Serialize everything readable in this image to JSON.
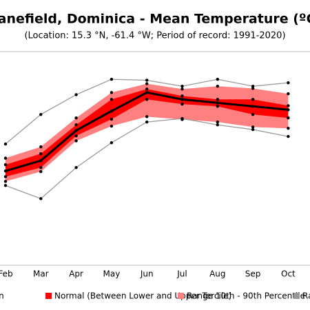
{
  "chart_data": {
    "type": "band-line",
    "title": "Canefield, Dominica - Mean Temperature (ºC)",
    "subtitle": "(Location: 15.3 °N, -61.4 °W; Period of record: 1991-2020)",
    "categories": [
      "Feb",
      "Mar",
      "Apr",
      "May",
      "Jun",
      "Jul",
      "Aug",
      "Sep",
      "Oct"
    ],
    "ylim": [
      21.5,
      28.3
    ],
    "series": [
      {
        "name": "Mean",
        "color": "#000000",
        "values": [
          24.5,
          24.83,
          25.79,
          26.41,
          27.0,
          26.78,
          26.67,
          26.56,
          26.45
        ]
      },
      {
        "name": "Normal (Between Lower and Upper Tercile)",
        "color": "#ff0000",
        "low": [
          24.32,
          24.61,
          25.62,
          26.15,
          26.78,
          26.63,
          26.56,
          26.3,
          26.19
        ],
        "high": [
          24.7,
          25.05,
          25.97,
          26.78,
          27.11,
          26.89,
          26.78,
          26.78,
          26.58
        ]
      },
      {
        "name": "Range 10th - 90th Percentile",
        "color": "#ff8080",
        "low": [
          24.17,
          24.48,
          25.46,
          25.93,
          26.23,
          26.14,
          26.06,
          25.9,
          25.86
        ],
        "high": [
          24.91,
          25.27,
          26.19,
          27.0,
          27.28,
          27.11,
          27.2,
          27.13,
          26.96
        ]
      },
      {
        "name": "Range Min - Max",
        "color": "#999999",
        "low": [
          24.04,
          23.62,
          24.61,
          25.4,
          26.06,
          26.17,
          25.97,
          25.82,
          25.6
        ],
        "high": [
          25.36,
          26.3,
          26.93,
          27.42,
          27.39,
          27.2,
          27.42,
          27.2,
          27.31
        ]
      }
    ]
  }
}
